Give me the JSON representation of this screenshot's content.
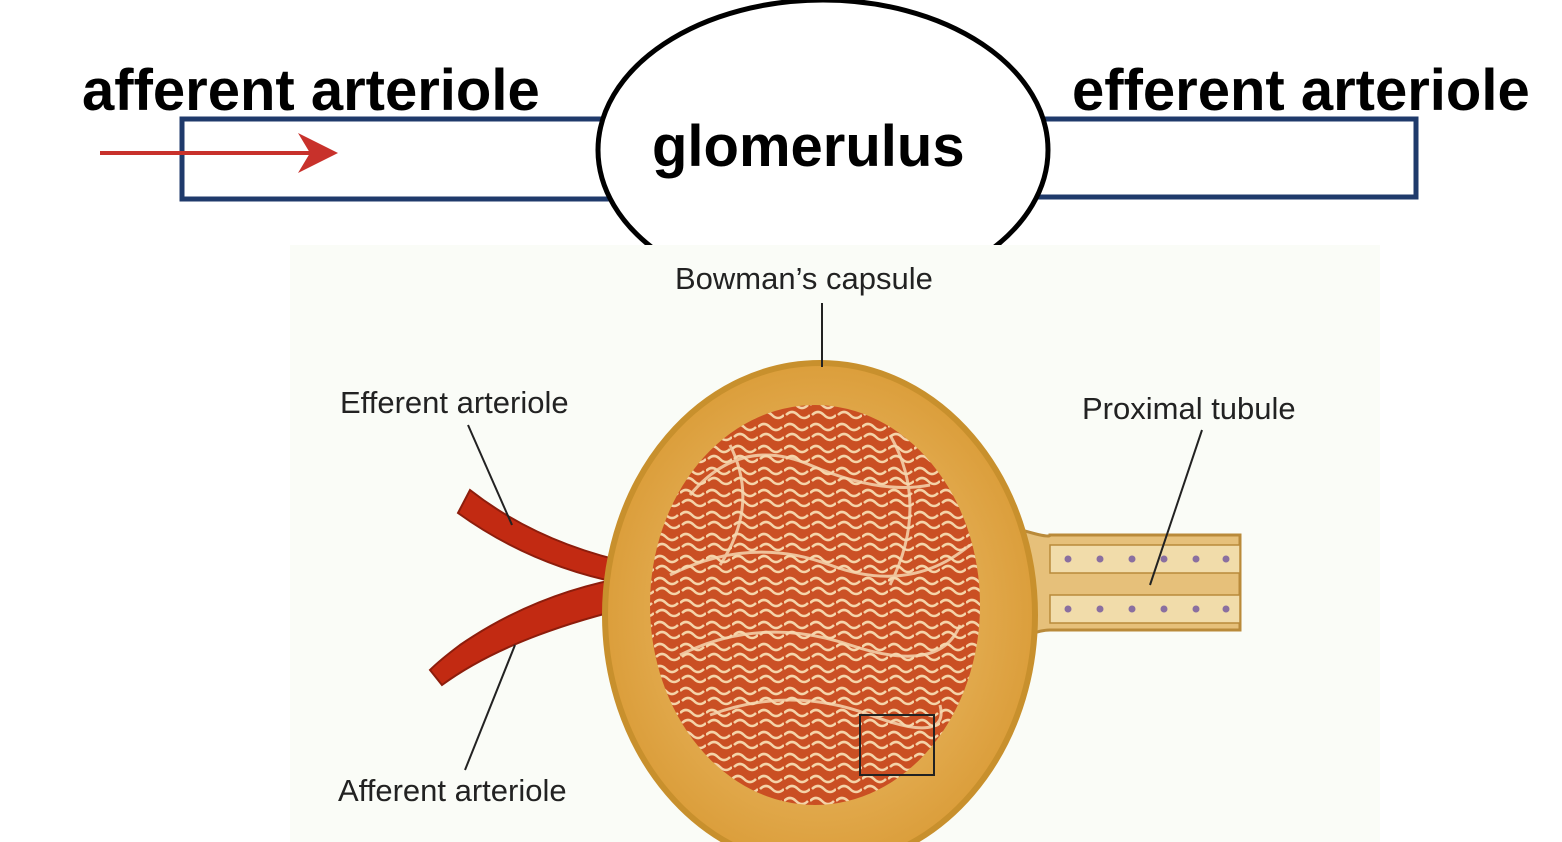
{
  "schematic": {
    "afferent_label": "afferent arteriole",
    "efferent_label": "efferent arteriole",
    "glomerulus_label": "glomerulus",
    "colors": {
      "vessel_outline": "#1f3a6b",
      "flow_arrow": "#c8312b",
      "glomerulus_outline": "#000000"
    }
  },
  "illustration": {
    "labels": {
      "bowmans_capsule": "Bowman’s capsule",
      "efferent_arteriole": "Efferent arteriole",
      "proximal_tubule": "Proximal tubule",
      "afferent_arteriole": "Afferent arteriole"
    },
    "colors": {
      "capsule": "#e2a845",
      "capillary": "#c8471f",
      "vessel": "#c22a12",
      "tubule": "#e6c07a"
    }
  }
}
